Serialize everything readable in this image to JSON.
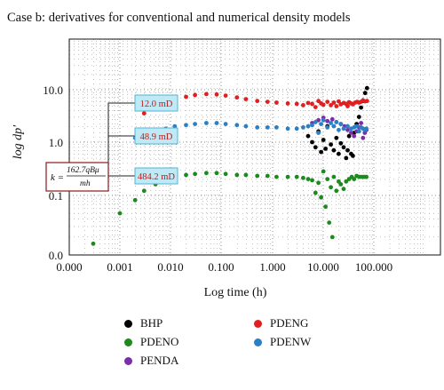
{
  "chart_data": {
    "type": "scatter",
    "title": "Case b: derivatives for conventional and numerical density models",
    "xlabel": "Log time (h)",
    "ylabel": "log dp′",
    "x_scale": "log",
    "y_scale": "log",
    "x_ticks": [
      "0.000",
      "0.001",
      "0.010",
      "0.100",
      "1.000",
      "10.000",
      "100.000"
    ],
    "y_ticks": [
      "10.0",
      "1.0",
      "0.1",
      "0.0"
    ],
    "grid": true,
    "legend_placement": "bottom",
    "annotations": {
      "formula": {
        "lhs": "k =",
        "numerator": "162.7qBμ",
        "denominator": "mh"
      },
      "labels": [
        "12.0 mD",
        "48.9 mD",
        "484.2 mD"
      ]
    },
    "series": [
      {
        "name": "BHP",
        "color": "#000000",
        "points": [
          [
            5.0,
            1.3
          ],
          [
            6.0,
            1.0
          ],
          [
            7.0,
            0.8
          ],
          [
            8.0,
            1.6
          ],
          [
            9.0,
            0.65
          ],
          [
            10,
            1.1
          ],
          [
            11,
            0.75
          ],
          [
            12,
            2.0
          ],
          [
            14,
            0.9
          ],
          [
            16,
            0.7
          ],
          [
            18,
            1.2
          ],
          [
            20,
            0.6
          ],
          [
            22,
            0.95
          ],
          [
            25,
            0.8
          ],
          [
            28,
            0.5
          ],
          [
            30,
            0.7
          ],
          [
            32,
            1.3
          ],
          [
            35,
            0.6
          ],
          [
            38,
            0.55
          ],
          [
            40,
            1.5
          ],
          [
            45,
            2.2
          ],
          [
            50,
            3.0
          ],
          [
            55,
            4.5
          ],
          [
            60,
            6.0
          ],
          [
            66,
            8.5
          ],
          [
            72,
            10.5
          ]
        ]
      },
      {
        "name": "PENDA",
        "color": "#7a2fa8",
        "points": [
          [
            6,
            2.3
          ],
          [
            8,
            2.6
          ],
          [
            10,
            2.9
          ],
          [
            12,
            2.5
          ],
          [
            15,
            2.7
          ],
          [
            18,
            2.4
          ],
          [
            22,
            2.2
          ],
          [
            26,
            2.0
          ],
          [
            30,
            1.7
          ],
          [
            35,
            1.5
          ],
          [
            40,
            1.3
          ],
          [
            45,
            1.6
          ],
          [
            50,
            1.9
          ],
          [
            55,
            2.3
          ],
          [
            60,
            1.2
          ],
          [
            65,
            1.5
          ],
          [
            70,
            1.7
          ]
        ]
      },
      {
        "name": "PDENO",
        "color": "#1c8a1c",
        "points": [
          [
            0.0003,
            0.012
          ],
          [
            0.001,
            0.045
          ],
          [
            0.002,
            0.08
          ],
          [
            0.003,
            0.12
          ],
          [
            0.005,
            0.16
          ],
          [
            0.008,
            0.2
          ],
          [
            0.012,
            0.22
          ],
          [
            0.02,
            0.24
          ],
          [
            0.03,
            0.25
          ],
          [
            0.05,
            0.26
          ],
          [
            0.08,
            0.26
          ],
          [
            0.12,
            0.25
          ],
          [
            0.2,
            0.24
          ],
          [
            0.3,
            0.24
          ],
          [
            0.5,
            0.23
          ],
          [
            0.8,
            0.23
          ],
          [
            1.2,
            0.22
          ],
          [
            2,
            0.22
          ],
          [
            3,
            0.22
          ],
          [
            4,
            0.21
          ],
          [
            5,
            0.2
          ],
          [
            6,
            0.19
          ],
          [
            7,
            0.11
          ],
          [
            8,
            0.17
          ],
          [
            9,
            0.09
          ],
          [
            10,
            0.28
          ],
          [
            11,
            0.06
          ],
          [
            12,
            0.2
          ],
          [
            13,
            0.03
          ],
          [
            14,
            0.14
          ],
          [
            15,
            0.016
          ],
          [
            16,
            0.22
          ],
          [
            18,
            0.12
          ],
          [
            20,
            0.18
          ],
          [
            22,
            0.16
          ],
          [
            25,
            0.13
          ],
          [
            28,
            0.18
          ],
          [
            32,
            0.2
          ],
          [
            36,
            0.22
          ],
          [
            40,
            0.2
          ],
          [
            45,
            0.23
          ],
          [
            50,
            0.22
          ],
          [
            55,
            0.22
          ],
          [
            60,
            0.22
          ],
          [
            65,
            0.22
          ],
          [
            70,
            0.22
          ]
        ]
      },
      {
        "name": "PDENG",
        "color": "#e02020",
        "points": [
          [
            0.003,
            3.5
          ],
          [
            0.005,
            4.5
          ],
          [
            0.008,
            5.6
          ],
          [
            0.012,
            6.5
          ],
          [
            0.02,
            7.2
          ],
          [
            0.03,
            7.8
          ],
          [
            0.05,
            8.1
          ],
          [
            0.08,
            8.0
          ],
          [
            0.12,
            7.6
          ],
          [
            0.2,
            7.0
          ],
          [
            0.3,
            6.5
          ],
          [
            0.5,
            6.0
          ],
          [
            0.8,
            5.8
          ],
          [
            1.2,
            5.6
          ],
          [
            2,
            5.4
          ],
          [
            3,
            5.3
          ],
          [
            4,
            5.0
          ],
          [
            5,
            5.5
          ],
          [
            6,
            5.3
          ],
          [
            7,
            4.6
          ],
          [
            8,
            6.0
          ],
          [
            9,
            5.4
          ],
          [
            10,
            5.1
          ],
          [
            12,
            5.8
          ],
          [
            14,
            5.0
          ],
          [
            16,
            5.6
          ],
          [
            18,
            4.8
          ],
          [
            20,
            5.9
          ],
          [
            22,
            5.2
          ],
          [
            25,
            5.5
          ],
          [
            28,
            5.3
          ],
          [
            30,
            4.8
          ],
          [
            32,
            5.7
          ],
          [
            35,
            5.4
          ],
          [
            38,
            5.2
          ],
          [
            42,
            5.6
          ],
          [
            46,
            5.8
          ],
          [
            50,
            5.6
          ],
          [
            55,
            5.8
          ],
          [
            60,
            6.2
          ],
          [
            66,
            5.9
          ],
          [
            72,
            6.0
          ]
        ]
      },
      {
        "name": "PDENW",
        "color": "#2b7fc4",
        "points": [
          [
            0.002,
            1.2
          ],
          [
            0.003,
            1.4
          ],
          [
            0.005,
            1.6
          ],
          [
            0.008,
            1.8
          ],
          [
            0.012,
            2.0
          ],
          [
            0.02,
            2.1
          ],
          [
            0.03,
            2.2
          ],
          [
            0.05,
            2.3
          ],
          [
            0.08,
            2.3
          ],
          [
            0.12,
            2.2
          ],
          [
            0.2,
            2.1
          ],
          [
            0.3,
            2.0
          ],
          [
            0.5,
            1.9
          ],
          [
            0.8,
            1.9
          ],
          [
            1.2,
            1.9
          ],
          [
            2,
            1.8
          ],
          [
            3,
            1.8
          ],
          [
            4,
            1.9
          ],
          [
            5,
            2.0
          ],
          [
            6,
            2.1
          ],
          [
            7,
            2.4
          ],
          [
            8,
            1.5
          ],
          [
            9,
            2.2
          ],
          [
            10,
            2.6
          ],
          [
            12,
            1.9
          ],
          [
            14,
            2.3
          ],
          [
            16,
            2.0
          ],
          [
            18,
            2.4
          ],
          [
            20,
            1.7
          ],
          [
            22,
            2.2
          ],
          [
            25,
            1.8
          ],
          [
            30,
            2.0
          ],
          [
            35,
            1.8
          ],
          [
            40,
            1.9
          ],
          [
            45,
            2.0
          ],
          [
            50,
            1.6
          ],
          [
            55,
            1.9
          ],
          [
            60,
            1.8
          ],
          [
            65,
            1.7
          ],
          [
            70,
            1.8
          ]
        ]
      }
    ]
  }
}
